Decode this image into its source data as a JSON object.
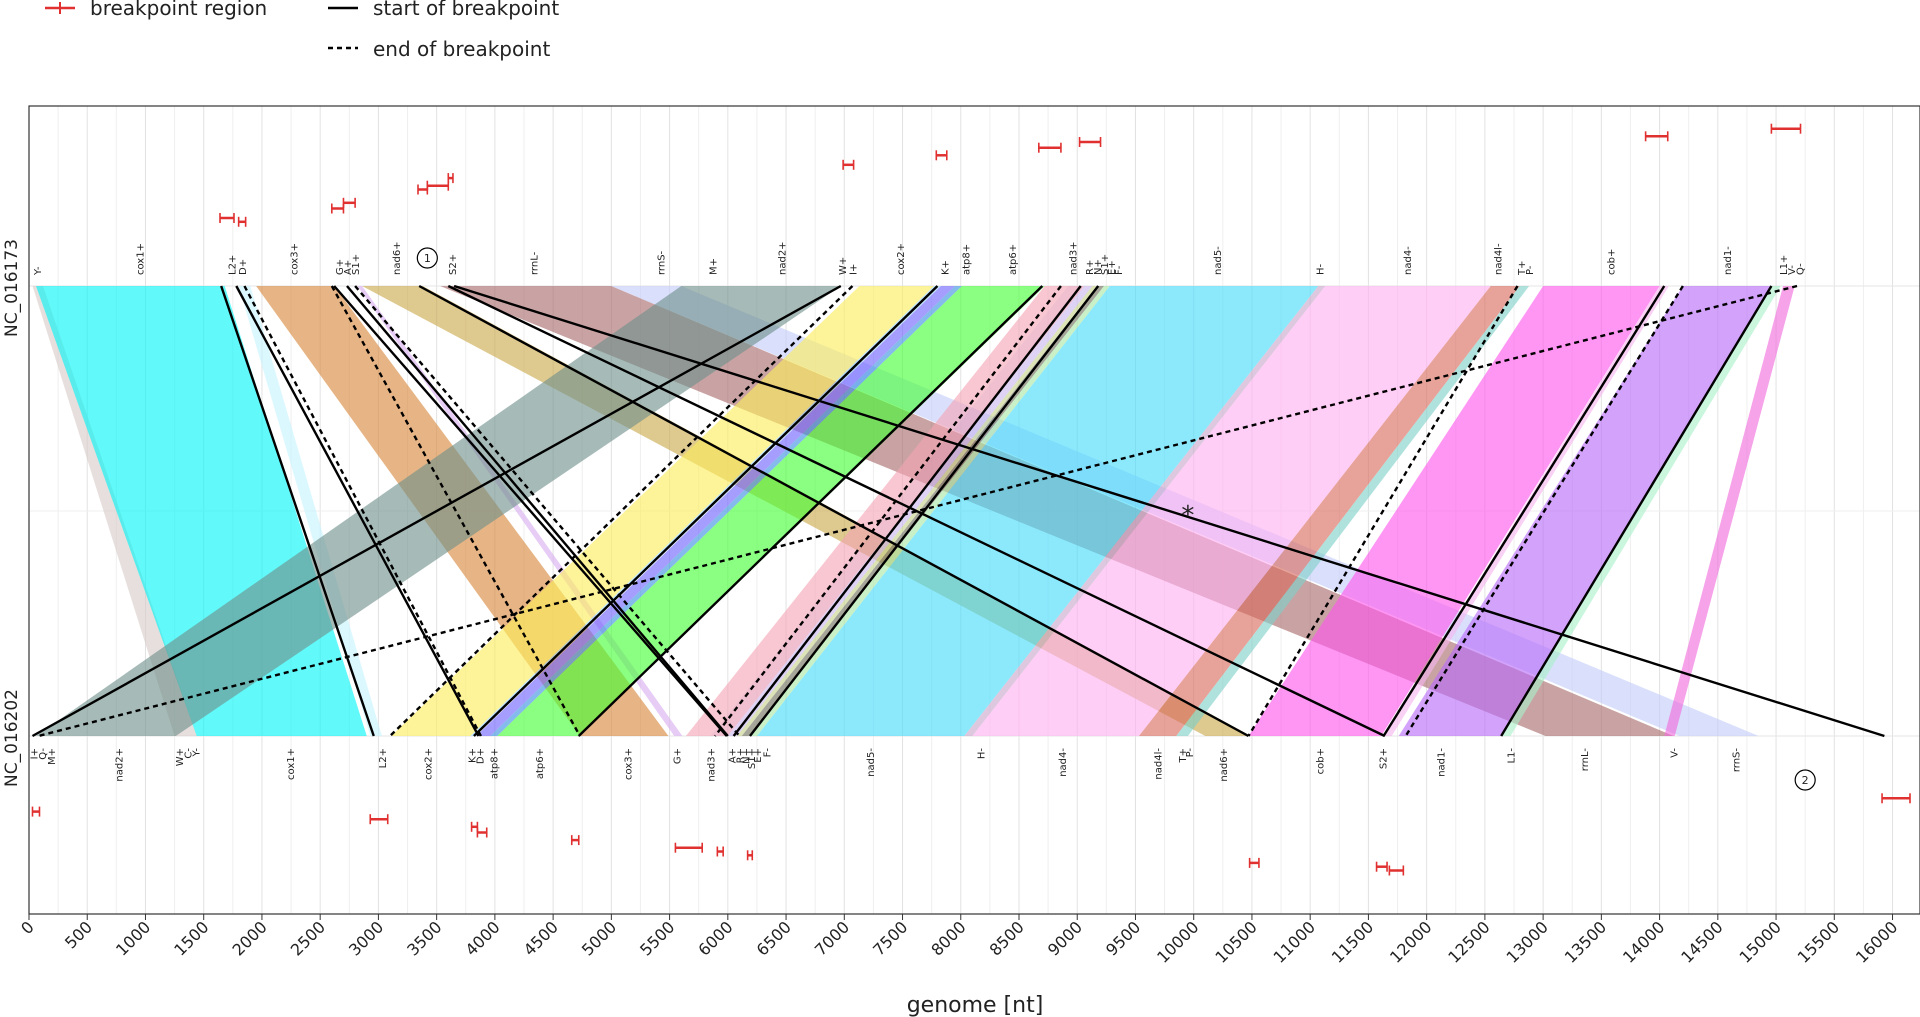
{
  "chart_data": {
    "type": "synteny",
    "xlabel": "genome [nt]",
    "x_ticks": [
      0,
      500,
      1000,
      1500,
      2000,
      2500,
      3000,
      3500,
      4000,
      4500,
      5000,
      5500,
      6000,
      6500,
      7000,
      7500,
      8000,
      8500,
      9000,
      9500,
      10000,
      10500,
      11000,
      11500,
      12000,
      12500,
      13000,
      13500,
      14000,
      14500,
      15000,
      15500,
      16000
    ],
    "xlim": [
      0,
      16150
    ],
    "legend": {
      "position": "top-left",
      "items": [
        {
          "label": "breakpoint region",
          "style": "red-bar"
        },
        {
          "label": "start of breakpoint",
          "style": "solid"
        },
        {
          "label": "end of breakpoint",
          "style": "dashed"
        }
      ]
    },
    "genomes": [
      {
        "name": "NC_016173",
        "position": "top"
      },
      {
        "name": "NC_016202",
        "position": "bottom"
      }
    ],
    "top_genes": [
      {
        "label": "Y-",
        "pos": 70
      },
      {
        "label": "cox1+",
        "pos": 950
      },
      {
        "label": "L2+",
        "pos": 1740
      },
      {
        "label": "D+",
        "pos": 1830
      },
      {
        "label": "cox3+",
        "pos": 2270
      },
      {
        "label": "G+",
        "pos": 2660
      },
      {
        "label": "A+",
        "pos": 2730
      },
      {
        "label": "S1+",
        "pos": 2800
      },
      {
        "label": "nad6+",
        "pos": 3150
      },
      {
        "label": "S2+",
        "pos": 3630
      },
      {
        "label": "rrnL-",
        "pos": 4330
      },
      {
        "label": "rrnS-",
        "pos": 5420
      },
      {
        "label": "M+",
        "pos": 5870
      },
      {
        "label": "nad2+",
        "pos": 6460
      },
      {
        "label": "W+",
        "pos": 6980
      },
      {
        "label": "I+",
        "pos": 7070
      },
      {
        "label": "cox2+",
        "pos": 7480
      },
      {
        "label": "K+",
        "pos": 7860
      },
      {
        "label": "atp8+",
        "pos": 8040
      },
      {
        "label": "atp6+",
        "pos": 8440
      },
      {
        "label": "nad3+",
        "pos": 8960
      },
      {
        "label": "R+",
        "pos": 9100
      },
      {
        "label": "N+",
        "pos": 9170
      },
      {
        "label": "S1+",
        "pos": 9230
      },
      {
        "label": "E+",
        "pos": 9290
      },
      {
        "label": "F-",
        "pos": 9350
      },
      {
        "label": "nad5-",
        "pos": 10200
      },
      {
        "label": "H-",
        "pos": 11080
      },
      {
        "label": "nad4-",
        "pos": 11830
      },
      {
        "label": "nad4l-",
        "pos": 12610
      },
      {
        "label": "T+",
        "pos": 12810
      },
      {
        "label": "P-",
        "pos": 12880
      },
      {
        "label": "cob+",
        "pos": 13580
      },
      {
        "label": "nad1-",
        "pos": 14580
      },
      {
        "label": "L1+",
        "pos": 15060
      },
      {
        "label": "V-",
        "pos": 15130
      },
      {
        "label": "Q-",
        "pos": 15200
      }
    ],
    "bottom_genes": [
      {
        "label": "I+",
        "pos": 40
      },
      {
        "label": "Q-",
        "pos": 110
      },
      {
        "label": "M+",
        "pos": 190
      },
      {
        "label": "nad2+",
        "pos": 770
      },
      {
        "label": "W+",
        "pos": 1290
      },
      {
        "label": "C-",
        "pos": 1360
      },
      {
        "label": "Y-",
        "pos": 1430
      },
      {
        "label": "cox1+",
        "pos": 2240
      },
      {
        "label": "L2+",
        "pos": 3030
      },
      {
        "label": "cox2+",
        "pos": 3420
      },
      {
        "label": "K+",
        "pos": 3800
      },
      {
        "label": "D+",
        "pos": 3870
      },
      {
        "label": "atp8+",
        "pos": 3990
      },
      {
        "label": "atp6+",
        "pos": 4380
      },
      {
        "label": "cox3+",
        "pos": 5140
      },
      {
        "label": "G+",
        "pos": 5560
      },
      {
        "label": "nad3+",
        "pos": 5850
      },
      {
        "label": "A+",
        "pos": 6030
      },
      {
        "label": "R+",
        "pos": 6100
      },
      {
        "label": "N+",
        "pos": 6150
      },
      {
        "label": "S1+",
        "pos": 6200
      },
      {
        "label": "E+",
        "pos": 6250
      },
      {
        "label": "F-",
        "pos": 6330
      },
      {
        "label": "nad5-",
        "pos": 7220
      },
      {
        "label": "H-",
        "pos": 8170
      },
      {
        "label": "nad4-",
        "pos": 8870
      },
      {
        "label": "nad4l-",
        "pos": 9690
      },
      {
        "label": "T+",
        "pos": 9900
      },
      {
        "label": "P-",
        "pos": 9960
      },
      {
        "label": "nad6+",
        "pos": 10250
      },
      {
        "label": "cob+",
        "pos": 11080
      },
      {
        "label": "S2+",
        "pos": 11620
      },
      {
        "label": "nad1-",
        "pos": 12120
      },
      {
        "label": "L1-",
        "pos": 12720
      },
      {
        "label": "rrnL-",
        "pos": 13350
      },
      {
        "label": "V-",
        "pos": 14120
      },
      {
        "label": "rrnS-",
        "pos": 14650
      }
    ],
    "blocks": [
      {
        "top": [
          30,
          120
        ],
        "bottom": [
          1250,
          1440
        ],
        "color": "#d7ccc8"
      },
      {
        "top": [
          60,
          1680
        ],
        "bottom": [
          1440,
          2900
        ],
        "color": "#00f5f5"
      },
      {
        "top": [
          1800,
          1900
        ],
        "bottom": [
          2930,
          3030
        ],
        "color": "#c6f3ff"
      },
      {
        "top": [
          1950,
          2620
        ],
        "bottom": [
          4730,
          5490
        ],
        "color": "#d9883a"
      },
      {
        "top": [
          2820,
          2860
        ],
        "bottom": [
          5540,
          5610
        ],
        "color": "#d8aef0"
      },
      {
        "top": [
          2860,
          3380
        ],
        "bottom": [
          10100,
          10490
        ],
        "color": "#c9a84a"
      },
      {
        "top": [
          3530,
          5000
        ],
        "bottom": [
          13020,
          14120
        ],
        "color": "#a86a6a"
      },
      {
        "top": [
          5000,
          5600
        ],
        "bottom": [
          14170,
          14850
        ],
        "color": "#c3cdfa"
      },
      {
        "top": [
          5600,
          6970
        ],
        "bottom": [
          60,
          1260
        ],
        "color": "#6f8f8a"
      },
      {
        "top": [
          7130,
          7770
        ],
        "bottom": [
          3110,
          3790
        ],
        "color": "#fbee5a"
      },
      {
        "top": [
          7770,
          7830
        ],
        "bottom": [
          3790,
          3830
        ],
        "color": "#9bd9ff"
      },
      {
        "top": [
          7830,
          7950
        ],
        "bottom": [
          3840,
          3960
        ],
        "color": "#6f63ff"
      },
      {
        "top": [
          7950,
          8010
        ],
        "bottom": [
          3960,
          4020
        ],
        "color": "#3a8fe0"
      },
      {
        "top": [
          8010,
          8720
        ],
        "bottom": [
          4020,
          4730
        ],
        "color": "#44ff33"
      },
      {
        "top": [
          8720,
          8920
        ],
        "bottom": [
          5640,
          5850
        ],
        "color": "#f3a5b5"
      },
      {
        "top": [
          8920,
          9060
        ],
        "bottom": [
          5850,
          6000
        ],
        "color": "#e89ab3"
      },
      {
        "top": [
          9060,
          9130
        ],
        "bottom": [
          6000,
          6080
        ],
        "color": "#c9b6ef"
      },
      {
        "top": [
          9130,
          9170
        ],
        "bottom": [
          6080,
          6120
        ],
        "color": "#c7d48b"
      },
      {
        "top": [
          9170,
          9230
        ],
        "bottom": [
          6120,
          6180
        ],
        "color": "#6e6e5a"
      },
      {
        "top": [
          9230,
          9280
        ],
        "bottom": [
          6180,
          6250
        ],
        "color": "#a8e6a3"
      },
      {
        "top": [
          9280,
          11070
        ],
        "bottom": [
          6250,
          8030
        ],
        "color": "#45dbfa"
      },
      {
        "top": [
          11070,
          11130
        ],
        "bottom": [
          8030,
          8100
        ],
        "color": "#c8a6cc"
      },
      {
        "top": [
          11130,
          12550
        ],
        "bottom": [
          8100,
          9530
        ],
        "color": "#ffb0f0"
      },
      {
        "top": [
          12550,
          12800
        ],
        "bottom": [
          9530,
          9850
        ],
        "color": "#d86a5c"
      },
      {
        "top": [
          12800,
          12880
        ],
        "bottom": [
          9850,
          9950
        ],
        "color": "#7fd1c8"
      },
      {
        "top": [
          13000,
          14000
        ],
        "bottom": [
          10470,
          11610
        ],
        "color": "#ff55ee"
      },
      {
        "top": [
          14000,
          14080
        ],
        "bottom": [
          11630,
          11700
        ],
        "color": "#f5b4ef"
      },
      {
        "top": [
          14200,
          14960
        ],
        "bottom": [
          11760,
          12640
        ],
        "color": "#b86bf8"
      },
      {
        "top": [
          14960,
          15040
        ],
        "bottom": [
          12640,
          12720
        ],
        "color": "#a8f0c8"
      },
      {
        "top": [
          15060,
          15160
        ],
        "bottom": [
          14040,
          14130
        ],
        "color": "#f06adc"
      }
    ],
    "lines": [
      {
        "top": 1650,
        "bottom": 2960,
        "style": "solid"
      },
      {
        "top": 1780,
        "bottom": 3860,
        "style": "solid"
      },
      {
        "top": 1850,
        "bottom": 3880,
        "style": "dashed"
      },
      {
        "top": 2600,
        "bottom": 4730,
        "style": "dashed"
      },
      {
        "top": 2620,
        "bottom": 5990,
        "style": "solid"
      },
      {
        "top": 2730,
        "bottom": 6000,
        "style": "solid"
      },
      {
        "top": 2800,
        "bottom": 6100,
        "style": "dashed"
      },
      {
        "top": 3350,
        "bottom": 10470,
        "style": "solid"
      },
      {
        "top": 3600,
        "bottom": 11640,
        "style": "solid"
      },
      {
        "top": 3650,
        "bottom": 15930,
        "style": "solid"
      },
      {
        "top": 6970,
        "bottom": 30,
        "style": "solid"
      },
      {
        "top": 7070,
        "bottom": 3100,
        "style": "dashed"
      },
      {
        "top": 7800,
        "bottom": 3820,
        "style": "solid"
      },
      {
        "top": 8700,
        "bottom": 4720,
        "style": "solid"
      },
      {
        "top": 8860,
        "bottom": 5890,
        "style": "dashed"
      },
      {
        "top": 9030,
        "bottom": 6050,
        "style": "solid"
      },
      {
        "top": 9180,
        "bottom": 6190,
        "style": "solid"
      },
      {
        "top": 12780,
        "bottom": 10470,
        "style": "dashed"
      },
      {
        "top": 14040,
        "bottom": 11630,
        "style": "solid"
      },
      {
        "top": 14200,
        "bottom": 11820,
        "style": "dashed"
      },
      {
        "top": 14960,
        "bottom": 12640,
        "style": "solid"
      },
      {
        "top": 15180,
        "bottom": 80,
        "style": "dashed"
      }
    ],
    "top_breakpoints": [
      {
        "from": 1640,
        "to": 1760,
        "level": 1.5
      },
      {
        "from": 1800,
        "to": 1860,
        "level": 1.4
      },
      {
        "from": 2600,
        "to": 2700,
        "level": 1.75
      },
      {
        "from": 2700,
        "to": 2800,
        "level": 1.9
      },
      {
        "from": 3340,
        "to": 3420,
        "level": 2.25
      },
      {
        "from": 3420,
        "to": 3600,
        "level": 2.35
      },
      {
        "from": 3600,
        "to": 3640,
        "level": 2.55
      },
      {
        "from": 6990,
        "to": 7080,
        "level": 2.9
      },
      {
        "from": 7790,
        "to": 7880,
        "level": 3.15
      },
      {
        "from": 8670,
        "to": 8860,
        "level": 3.35
      },
      {
        "from": 9020,
        "to": 9200,
        "level": 3.5
      },
      {
        "from": 13880,
        "to": 14070,
        "level": 3.65
      },
      {
        "from": 14960,
        "to": 15210,
        "level": 3.85
      }
    ],
    "bottom_breakpoints": [
      {
        "from": 30,
        "to": 90,
        "level": 0.7
      },
      {
        "from": 2930,
        "to": 3080,
        "level": 0.9
      },
      {
        "from": 3800,
        "to": 3850,
        "level": 1.1
      },
      {
        "from": 3850,
        "to": 3930,
        "level": 1.25
      },
      {
        "from": 4660,
        "to": 4720,
        "level": 1.45
      },
      {
        "from": 5550,
        "to": 5780,
        "level": 1.65
      },
      {
        "from": 5910,
        "to": 5960,
        "level": 1.75
      },
      {
        "from": 6170,
        "to": 6210,
        "level": 1.85
      },
      {
        "from": 10480,
        "to": 10560,
        "level": 2.05
      },
      {
        "from": 11570,
        "to": 11660,
        "level": 2.15
      },
      {
        "from": 11680,
        "to": 11800,
        "level": 2.25
      },
      {
        "from": 15910,
        "to": 16150,
        "level": 0.35
      }
    ],
    "annotations": [
      {
        "type": "circle",
        "text": "1",
        "x": 3420,
        "track": "top"
      },
      {
        "type": "circle",
        "text": "2",
        "x": 15250,
        "track": "bottom"
      },
      {
        "type": "star",
        "text": "*",
        "x": 9950,
        "track": "middle"
      }
    ]
  }
}
